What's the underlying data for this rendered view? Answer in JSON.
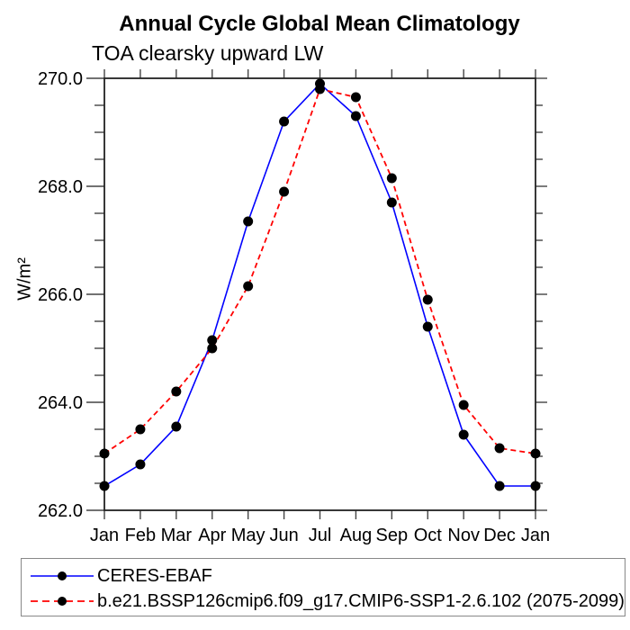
{
  "header": {
    "title": "Annual Cycle Global Mean Climatology",
    "subtitle": "TOA clearsky upward LW"
  },
  "chart_data": {
    "type": "line",
    "title": "Annual Cycle Global Mean Climatology",
    "subtitle": "TOA clearsky upward LW",
    "xlabel": "",
    "ylabel": "W/m²",
    "x_categories": [
      "Jan",
      "Feb",
      "Mar",
      "Apr",
      "May",
      "Jun",
      "Jul",
      "Aug",
      "Sep",
      "Oct",
      "Nov",
      "Dec",
      "Jan"
    ],
    "ylim": [
      262.0,
      270.0
    ],
    "y_major_tick_step": 2.0,
    "y_minor_tick_step": 0.5,
    "y_tick_labels": [
      "262.0",
      "264.0",
      "266.0",
      "268.0",
      "270.0"
    ],
    "grid": false,
    "legend_position": "bottom-left-box",
    "axis_color": "#222222",
    "marker": "filled-circle",
    "marker_color": "#000000",
    "series": [
      {
        "name": "CERES-EBAF",
        "color": "#0000ff",
        "line_style": "solid",
        "values": [
          262.45,
          262.85,
          263.55,
          265.15,
          267.35,
          269.2,
          269.9,
          269.3,
          267.7,
          265.4,
          263.4,
          262.45,
          262.45
        ]
      },
      {
        "name": "b.e21.BSSP126cmip6.f09_g17.CMIP6-SSP1-2.6.102 (2075-2099)",
        "color": "#ff0000",
        "line_style": "dashed",
        "values": [
          263.05,
          263.5,
          264.2,
          265.0,
          266.15,
          267.9,
          269.8,
          269.65,
          268.15,
          265.9,
          263.95,
          263.15,
          263.05
        ]
      }
    ]
  }
}
